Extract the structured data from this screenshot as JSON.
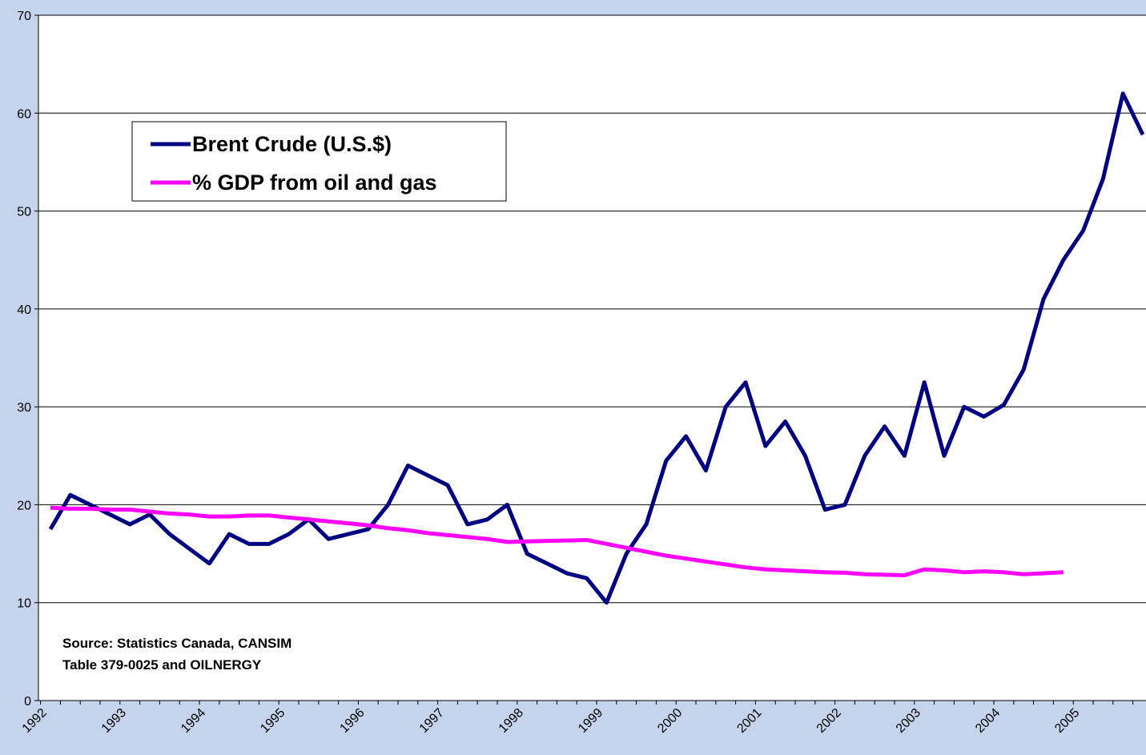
{
  "chart_data": {
    "type": "line",
    "categories": [
      "1992",
      null,
      null,
      null,
      "1993",
      null,
      null,
      null,
      "1994",
      null,
      null,
      null,
      "1995",
      null,
      null,
      null,
      "1996",
      null,
      null,
      null,
      "1997",
      null,
      null,
      null,
      "1998",
      null,
      null,
      null,
      "1999",
      null,
      null,
      null,
      "2000",
      null,
      null,
      null,
      "2001",
      null,
      null,
      null,
      "2002",
      null,
      null,
      null,
      "2003",
      null,
      null,
      null,
      "2004",
      null,
      null,
      null,
      "2005",
      null,
      null,
      null
    ],
    "series": [
      {
        "name": "Brent Crude (U.S.$)",
        "color": "#000080",
        "values": [
          17.5,
          21,
          20,
          19,
          18,
          19,
          17,
          15.5,
          14,
          17,
          16,
          16,
          17,
          18.5,
          16.5,
          17,
          17.5,
          20,
          24,
          23,
          22,
          18,
          18.5,
          20,
          15,
          14,
          13,
          12.5,
          10,
          15,
          18,
          24.5,
          27,
          23.5,
          30,
          32.5,
          26,
          28.5,
          25,
          19.5,
          20,
          25,
          28,
          25,
          32.5,
          25,
          30,
          29,
          30.2,
          33.8,
          41,
          45,
          48,
          53.3,
          62,
          57.8
        ]
      },
      {
        "name": "% GDP from oil and gas",
        "color": "#ff00ff",
        "values": [
          19.7,
          19.6,
          19.6,
          19.5,
          19.5,
          19.3,
          19.1,
          19.0,
          18.8,
          18.8,
          18.9,
          18.9,
          18.7,
          18.5,
          18.3,
          18.1,
          17.9,
          17.6,
          17.4,
          17.1,
          16.9,
          16.7,
          16.5,
          16.2,
          16.25,
          16.3,
          16.35,
          16.4,
          16.0,
          15.6,
          15.2,
          14.8,
          14.5,
          14.2,
          13.9,
          13.6,
          13.4,
          13.3,
          13.2,
          13.1,
          13.05,
          12.9,
          12.85,
          12.8,
          13.4,
          13.3,
          13.1,
          13.2,
          13.1,
          12.9,
          13.0,
          13.1,
          null,
          null,
          null,
          null
        ]
      }
    ],
    "ylim": [
      0,
      70
    ],
    "yticks": [
      0,
      10,
      20,
      30,
      40,
      50,
      60,
      70
    ],
    "grid": true,
    "legend": "upper left",
    "annotations": [
      "Source: Statistics Canada, CANSIM",
      "Table 379-0025 and OILNERGY"
    ]
  }
}
